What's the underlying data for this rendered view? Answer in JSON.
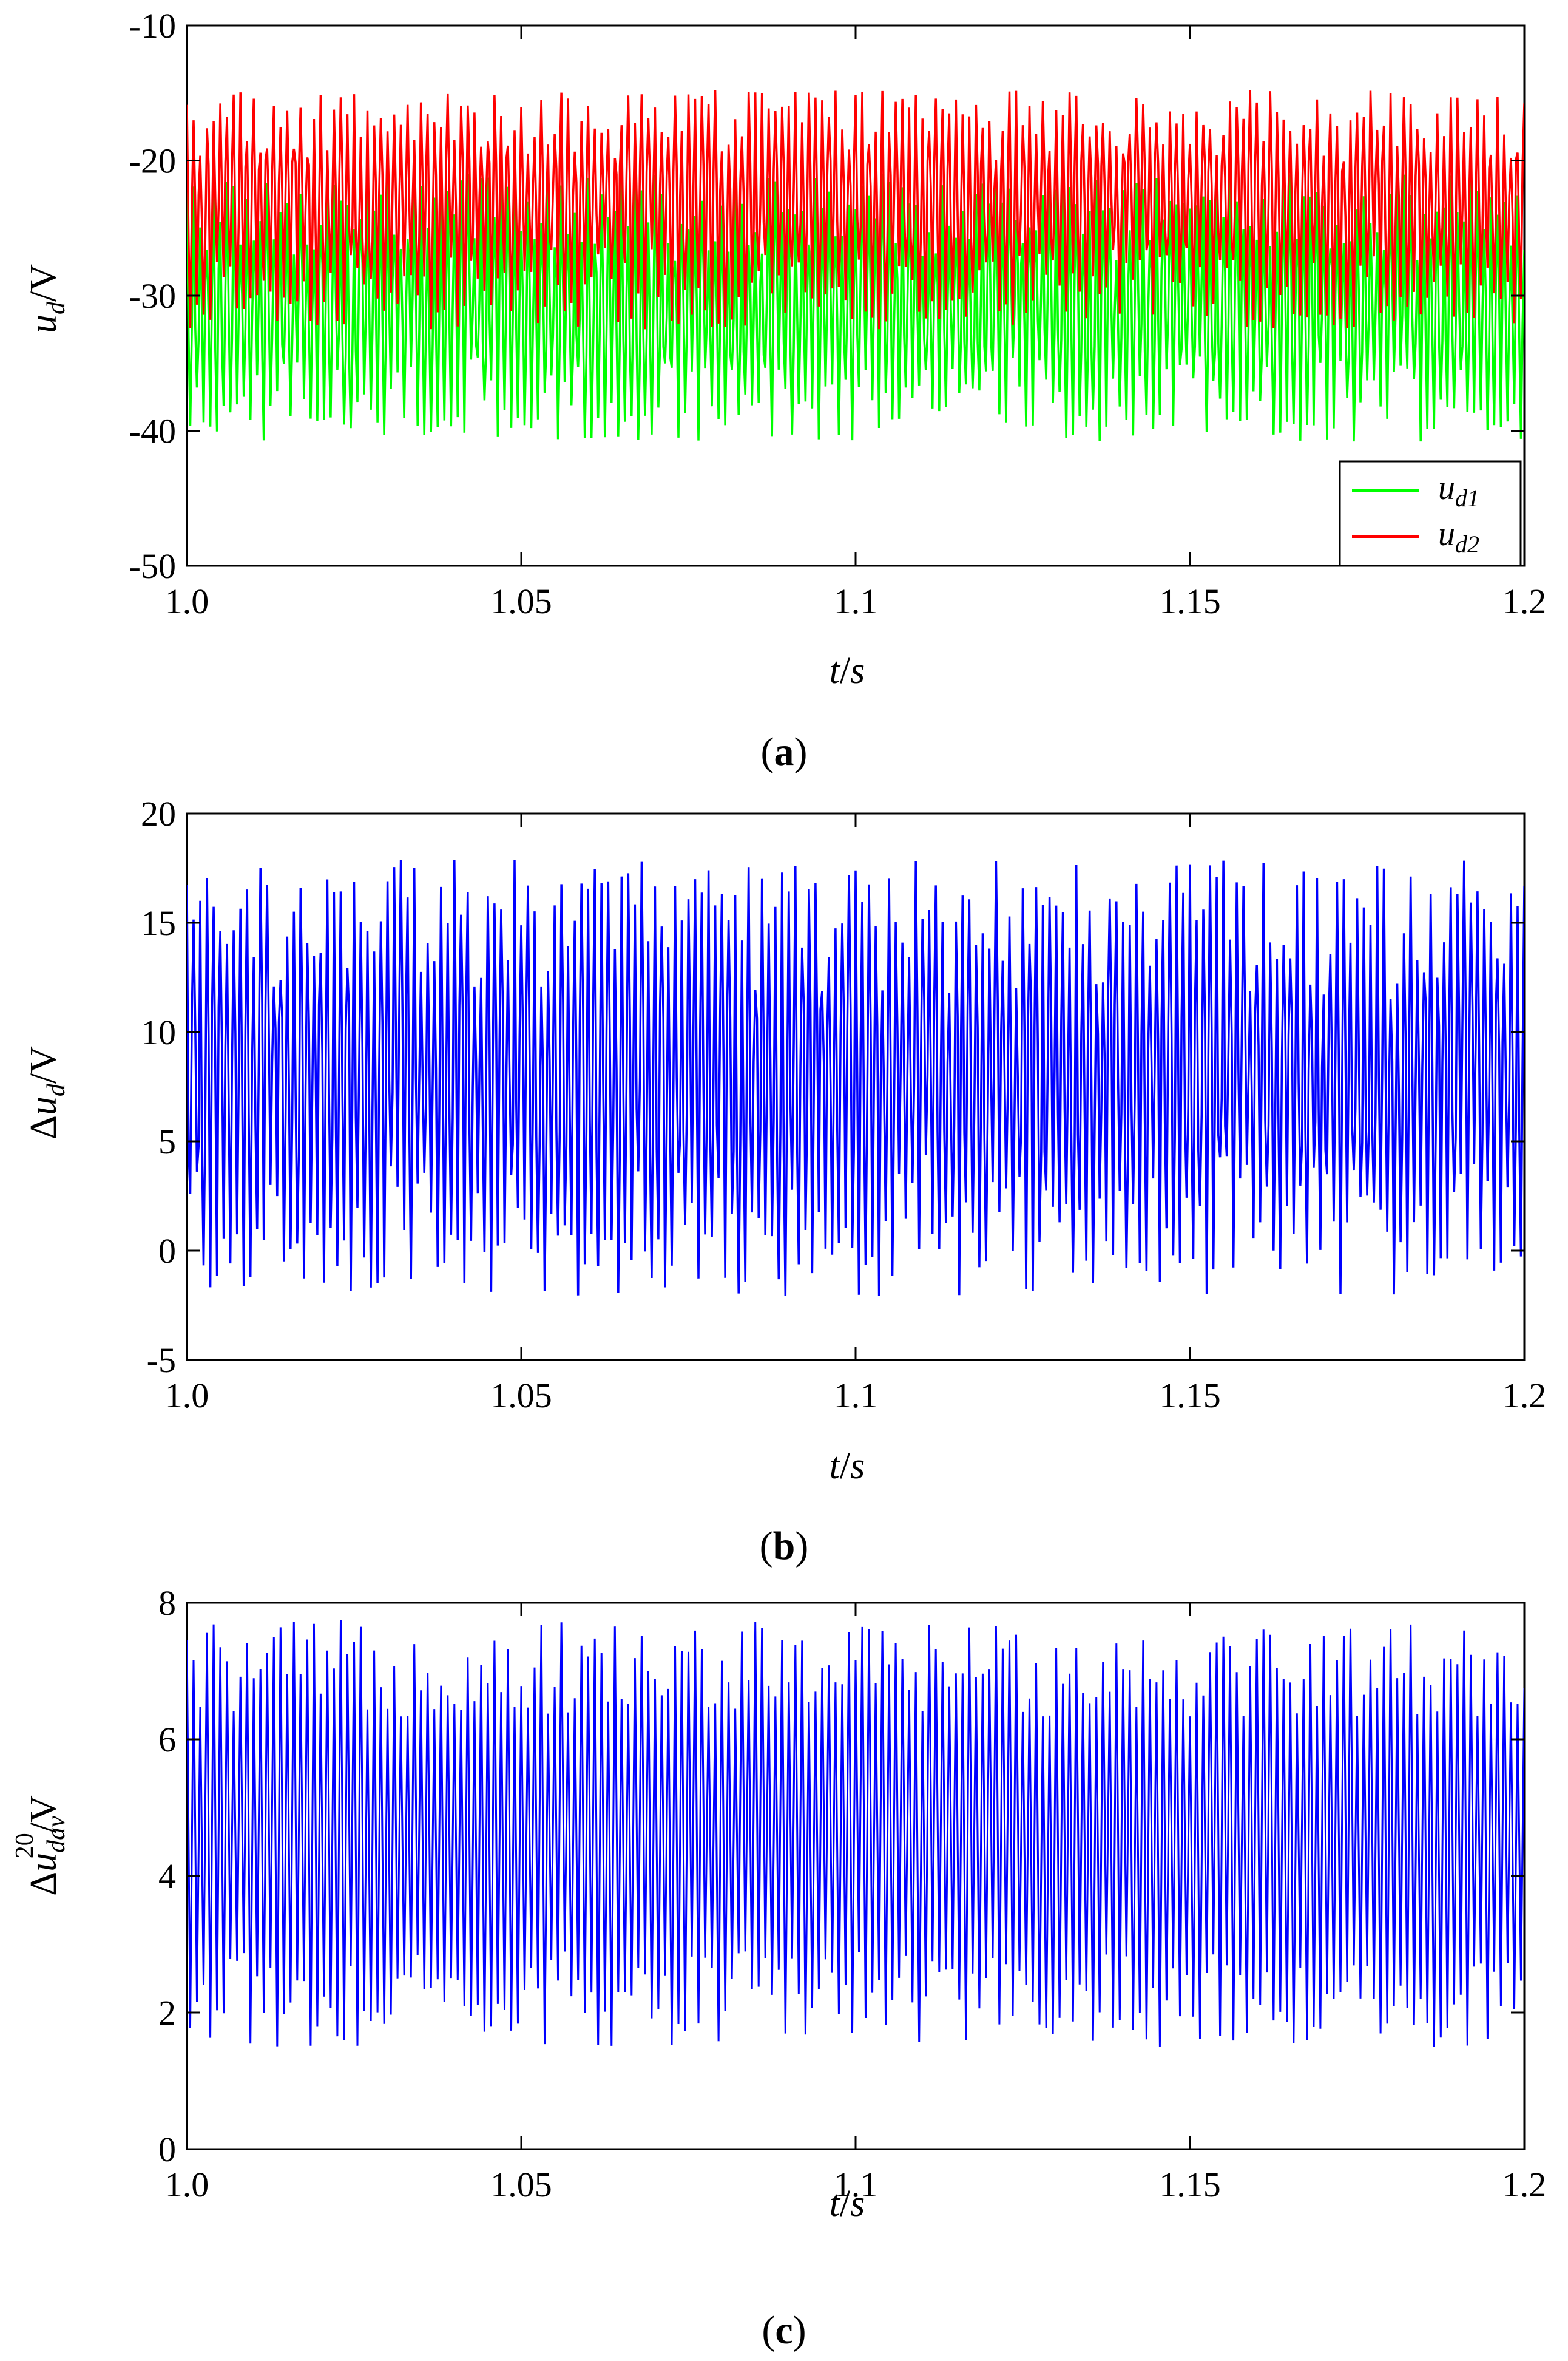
{
  "panels": [
    {
      "caption_letter": "a",
      "xlabel": {
        "italic": "t",
        "rest": "/",
        "italic2": "s"
      },
      "ylabel": {
        "prefix": "",
        "base": "u",
        "sub": "d",
        "sup": "",
        "unit": "/V"
      },
      "legend": [
        {
          "base": "u",
          "sub": "d1",
          "color": "#00ff00"
        },
        {
          "base": "u",
          "sub": "d2",
          "color": "#ff0000"
        }
      ]
    },
    {
      "caption_letter": "b",
      "xlabel": {
        "italic": "t",
        "rest": "/",
        "italic2": "s"
      },
      "ylabel": {
        "prefix": "Δ",
        "base": "u",
        "sub": "d",
        "sup": "",
        "unit": "/V"
      },
      "legend": []
    },
    {
      "caption_letter": "c",
      "xlabel": {
        "italic": "t",
        "rest": "/",
        "italic2": "s"
      },
      "ylabel": {
        "prefix": "Δ",
        "base": "u",
        "sub": "dav",
        "sup": "20",
        "unit": "/V"
      },
      "legend": []
    }
  ],
  "chart_data": [
    {
      "type": "line",
      "xlim": [
        1.0,
        1.2
      ],
      "ylim": [
        -50,
        -10
      ],
      "xticks": [
        1.0,
        1.05,
        1.1,
        1.15,
        1.2
      ],
      "xtick_labels": [
        "1.0",
        "1.05",
        "1.1",
        "1.15",
        "1.2"
      ],
      "yticks": [
        -50,
        -40,
        -30,
        -20,
        -10
      ],
      "ytick_labels": [
        "-50",
        "-40",
        "-30",
        "-20",
        "-10"
      ],
      "grid": false,
      "legend_position": "bottom-right",
      "series": [
        {
          "name": "u_d1",
          "color": "#00ff00",
          "mean": -31,
          "range": [
            -40.8,
            -21.0
          ],
          "step_s": 0.00025,
          "peak_period_s": 0.001
        },
        {
          "name": "u_d2",
          "color": "#ff0000",
          "mean": -23,
          "range": [
            -32.5,
            -14.8
          ],
          "step_s": 0.00025,
          "peak_period_s": 0.001
        }
      ]
    },
    {
      "type": "line",
      "xlim": [
        1.0,
        1.2
      ],
      "ylim": [
        -5,
        20
      ],
      "xticks": [
        1.0,
        1.05,
        1.1,
        1.15,
        1.2
      ],
      "xtick_labels": [
        "1.0",
        "1.05",
        "1.1",
        "1.15",
        "1.2"
      ],
      "yticks": [
        -5,
        0,
        5,
        10,
        15,
        20
      ],
      "ytick_labels": [
        "-5",
        "0",
        "5",
        "10",
        "15",
        "20"
      ],
      "grid": false,
      "series": [
        {
          "color": "#0000ff",
          "mean": 8,
          "range": [
            -2.1,
            17.9
          ],
          "step_s": 0.00025,
          "peak_period_s": 0.001
        }
      ]
    },
    {
      "type": "line",
      "xlim": [
        1.0,
        1.2
      ],
      "ylim": [
        0,
        8
      ],
      "xticks": [
        1.0,
        1.05,
        1.1,
        1.15,
        1.2
      ],
      "xtick_labels": [
        "1.0",
        "1.05",
        "1.1",
        "1.15",
        "1.2"
      ],
      "yticks": [
        0,
        2,
        4,
        6,
        8
      ],
      "ytick_labels": [
        "0",
        "2",
        "4",
        "6",
        "8"
      ],
      "grid": false,
      "series": [
        {
          "color": "#0000ff",
          "mean": 4.6,
          "range": [
            1.5,
            7.75
          ],
          "step_s": 0.0005,
          "oscillation_period_s": 0.001
        }
      ]
    }
  ]
}
